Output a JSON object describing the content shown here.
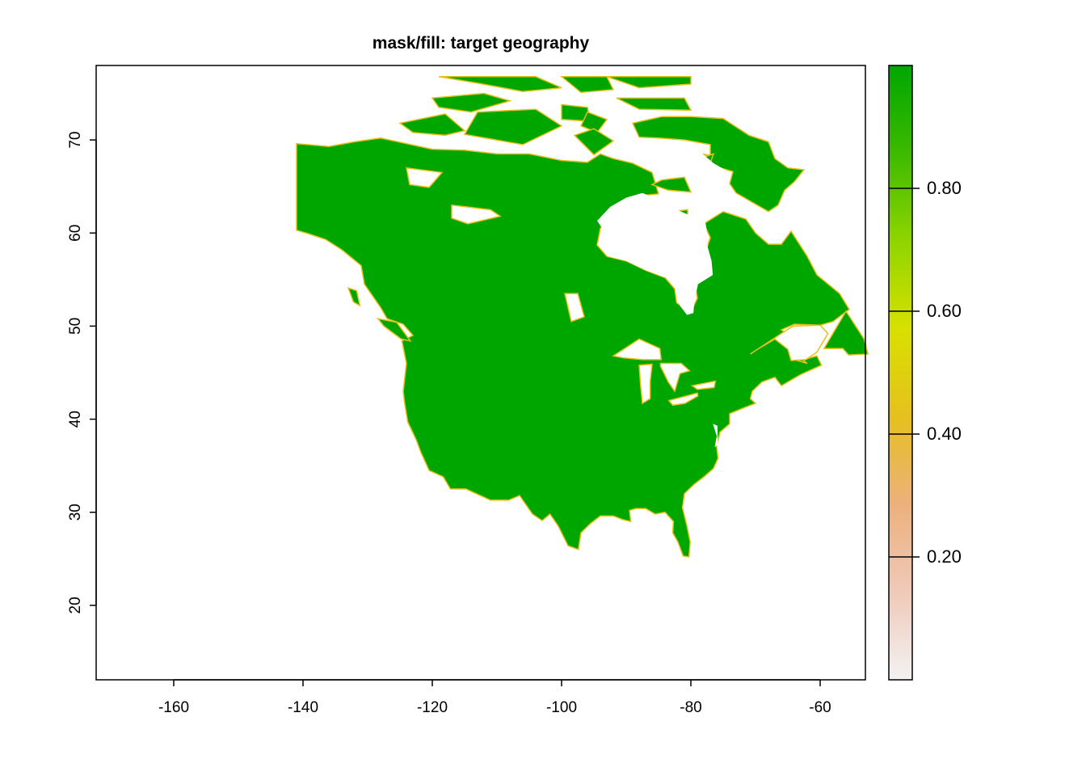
{
  "chart_data": {
    "type": "heatmap",
    "title": "mask/fill: target geography",
    "xlim": [
      -172,
      -53
    ],
    "ylim": [
      12,
      78
    ],
    "x_ticks": [
      -160,
      -140,
      -120,
      -100,
      -80,
      -60
    ],
    "x_tick_labels": [
      "-160",
      "-140",
      "-120",
      "-100",
      "-80",
      "-60"
    ],
    "y_ticks": [
      20,
      30,
      40,
      50,
      60,
      70
    ],
    "y_tick_labels": [
      "20",
      "30",
      "40",
      "50",
      "60",
      "70"
    ],
    "grid": false,
    "legend": {
      "placement": "right",
      "range": [
        0,
        1
      ],
      "ticks": [
        0.2,
        0.4,
        0.6,
        0.8
      ],
      "tick_labels": [
        "0.20",
        "0.40",
        "0.60",
        "0.80"
      ],
      "colors": [
        "#f2f2f2",
        "#f0c9b9",
        "#ecb07c",
        "#e6c01d",
        "#d8e000",
        "#8fd500",
        "#3dba00",
        "#00a600"
      ]
    },
    "fill_color": "#00a600",
    "edge_color": "#e6c01d",
    "region_value": 1.0
  }
}
